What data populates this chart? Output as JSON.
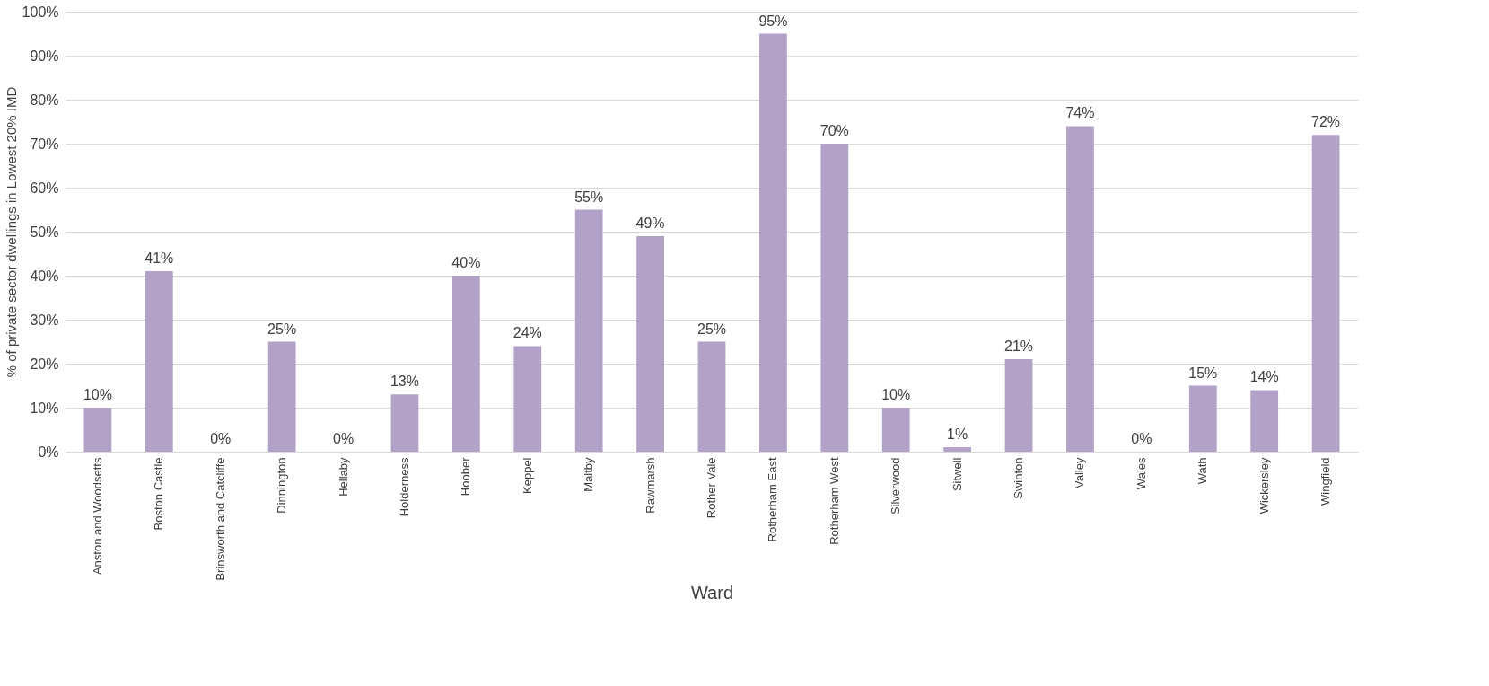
{
  "chart_data": {
    "type": "bar",
    "xlabel": "Ward",
    "ylabel": "% of private sector dwellings in Lowest 20% IMD",
    "categories": [
      "Anston and Woodsetts",
      "Boston Castle",
      "Brinsworth and Catcliffe",
      "Dinnington",
      "Hellaby",
      "Holderness",
      "Hoober",
      "Keppel",
      "Maltby",
      "Rawmarsh",
      "Rother Vale",
      "Rotherham East",
      "Rotherham West",
      "Silverwood",
      "Sitwell",
      "Swinton",
      "Valley",
      "Wales",
      "Wath",
      "Wickersley",
      "Wingfield"
    ],
    "series": [
      {
        "color": "#b3a2c7",
        "values": [
          10,
          41,
          0,
          25,
          0,
          13,
          40,
          24,
          55,
          49,
          25,
          95,
          70,
          10,
          1,
          21,
          74,
          0,
          15,
          14,
          72
        ]
      }
    ],
    "value_labels": [
      "10%",
      "41%",
      "0%",
      "25%",
      "0%",
      "13%",
      "40%",
      "24%",
      "55%",
      "49%",
      "25%",
      "95%",
      "70%",
      "10%",
      "1%",
      "21%",
      "74%",
      "0%",
      "15%",
      "14%",
      "72%"
    ],
    "ylim": [
      0,
      100
    ],
    "yticks": [
      {
        "value": 0,
        "label": "0%"
      },
      {
        "value": 10,
        "label": "10%"
      },
      {
        "value": 20,
        "label": "20%"
      },
      {
        "value": 30,
        "label": "30%"
      },
      {
        "value": 40,
        "label": "40%"
      },
      {
        "value": 50,
        "label": "50%"
      },
      {
        "value": 60,
        "label": "60%"
      },
      {
        "value": 70,
        "label": "70%"
      },
      {
        "value": 80,
        "label": "80%"
      },
      {
        "value": 90,
        "label": "90%"
      },
      {
        "value": 100,
        "label": "100%"
      }
    ],
    "grid": "y",
    "legend": false
  }
}
